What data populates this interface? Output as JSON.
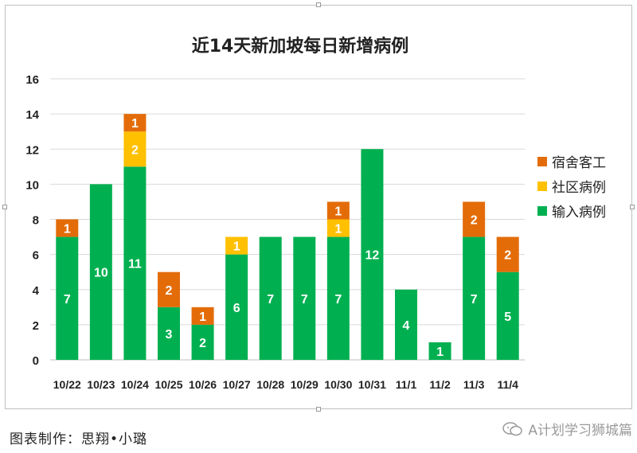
{
  "chart_data": {
    "type": "bar",
    "stacked": true,
    "title": "近14天新加坡每日新增病例",
    "categories": [
      "10/22",
      "10/23",
      "10/24",
      "10/25",
      "10/26",
      "10/27",
      "10/28",
      "10/29",
      "10/30",
      "10/31",
      "11/1",
      "11/2",
      "11/3",
      "11/4"
    ],
    "series": [
      {
        "name": "输入病例",
        "color": "#00b050",
        "values": [
          7,
          10,
          11,
          3,
          2,
          6,
          7,
          7,
          7,
          12,
          4,
          1,
          7,
          5
        ]
      },
      {
        "name": "社区病例",
        "color": "#ffc000",
        "values": [
          0,
          0,
          2,
          0,
          0,
          1,
          0,
          0,
          1,
          0,
          0,
          0,
          0,
          0
        ]
      },
      {
        "name": "宿舍客工",
        "color": "#e36c09",
        "values": [
          1,
          0,
          1,
          2,
          1,
          0,
          0,
          0,
          1,
          0,
          0,
          0,
          2,
          2
        ]
      }
    ],
    "ylim": [
      0,
      16
    ],
    "yticks": [
      0,
      2,
      4,
      6,
      8,
      10,
      12,
      14,
      16
    ],
    "grid": true,
    "legend_position": "right"
  },
  "footer": {
    "caption": "图表制作：思翔•小璐",
    "watermark": "A计划学习狮城篇",
    "watermark_icon": "wechat-icon"
  }
}
